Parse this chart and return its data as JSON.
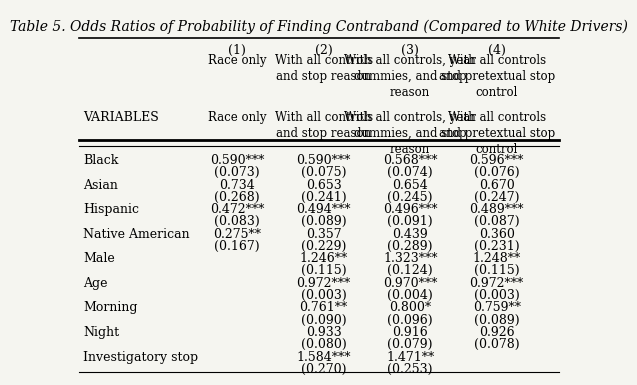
{
  "title": "Table 5. Odds Ratios of Probability of Finding Contraband (Compared to White Drivers)",
  "col_headers": [
    "(1)",
    "(2)",
    "(3)",
    "(4)"
  ],
  "col_subheaders": [
    "Race only",
    "With all controls\nand stop reason",
    "With all controls, year\ndummies, and stop\nreason",
    "With all controls\nand pretextual stop\ncontrol"
  ],
  "variables_label": "VARIABLES",
  "rows": [
    {
      "label": "Black",
      "values": [
        "0.590***",
        "0.590***",
        "0.568***",
        "0.596***"
      ],
      "se": [
        "(0.073)",
        "(0.075)",
        "(0.074)",
        "(0.076)"
      ]
    },
    {
      "label": "Asian",
      "values": [
        "0.734",
        "0.653",
        "0.654",
        "0.670"
      ],
      "se": [
        "(0.268)",
        "(0.241)",
        "(0.245)",
        "(0.247)"
      ]
    },
    {
      "label": "Hispanic",
      "values": [
        "0.472***",
        "0.494***",
        "0.496***",
        "0.489***"
      ],
      "se": [
        "(0.083)",
        "(0.089)",
        "(0.091)",
        "(0.087)"
      ]
    },
    {
      "label": "Native American",
      "values": [
        "0.275**",
        "0.357",
        "0.439",
        "0.360"
      ],
      "se": [
        "(0.167)",
        "(0.229)",
        "(0.289)",
        "(0.231)"
      ]
    },
    {
      "label": "Male",
      "values": [
        "",
        "1.246**",
        "1.323***",
        "1.248**"
      ],
      "se": [
        "",
        "(0.115)",
        "(0.124)",
        "(0.115)"
      ]
    },
    {
      "label": "Age",
      "values": [
        "",
        "0.972***",
        "0.970***",
        "0.972***"
      ],
      "se": [
        "",
        "(0.003)",
        "(0.004)",
        "(0.003)"
      ]
    },
    {
      "label": "Morning",
      "values": [
        "",
        "0.761**",
        "0.800*",
        "0.759**"
      ],
      "se": [
        "",
        "(0.090)",
        "(0.096)",
        "(0.089)"
      ]
    },
    {
      "label": "Night",
      "values": [
        "",
        "0.933",
        "0.916",
        "0.926"
      ],
      "se": [
        "",
        "(0.080)",
        "(0.079)",
        "(0.078)"
      ]
    },
    {
      "label": "Investigatory stop",
      "values": [
        "",
        "1.584***",
        "1.471**",
        ""
      ],
      "se": [
        "",
        "(0.270)",
        "(0.253)",
        ""
      ]
    }
  ],
  "bg_color": "#f5f5f0",
  "text_color": "#000000",
  "title_fontsize": 10,
  "body_fontsize": 9,
  "header_fontsize": 9
}
